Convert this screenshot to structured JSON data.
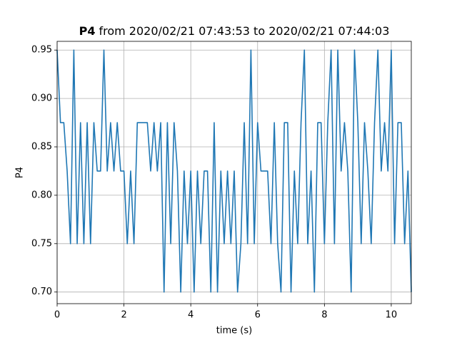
{
  "chart_data": {
    "type": "line",
    "title": [
      "P4",
      "from 2020/02/21 07:43:53 to 2020/02/21 07:44:03"
    ],
    "xlabel": "time (s)",
    "ylabel": "P4",
    "x": [
      0,
      0.1,
      0.2,
      0.3,
      0.4,
      0.5,
      0.6,
      0.7,
      0.8,
      0.9,
      1.0,
      1.1,
      1.2,
      1.3,
      1.4,
      1.5,
      1.6,
      1.7,
      1.8,
      1.9,
      2.0,
      2.1,
      2.2,
      2.3,
      2.4,
      2.5,
      2.6,
      2.7,
      2.8,
      2.9,
      3.0,
      3.1,
      3.2,
      3.3,
      3.4,
      3.5,
      3.6,
      3.7,
      3.8,
      3.9,
      4.0,
      4.1,
      4.2,
      4.3,
      4.4,
      4.5,
      4.6,
      4.7,
      4.8,
      4.9,
      5.0,
      5.1,
      5.2,
      5.3,
      5.4,
      5.5,
      5.6,
      5.7,
      5.8,
      5.9,
      6.0,
      6.1,
      6.2,
      6.3,
      6.4,
      6.5,
      6.6,
      6.7,
      6.8,
      6.9,
      7.0,
      7.1,
      7.2,
      7.3,
      7.4,
      7.5,
      7.6,
      7.7,
      7.8,
      7.9,
      8.0,
      8.1,
      8.2,
      8.3,
      8.4,
      8.5,
      8.6,
      8.7,
      8.8,
      8.9,
      9.0,
      9.1,
      9.2,
      9.3,
      9.4,
      9.5,
      9.6,
      9.7,
      9.8,
      9.9,
      10.0,
      10.1,
      10.2,
      10.3,
      10.4,
      10.5,
      10.6
    ],
    "values": [
      0.95,
      0.875,
      0.875,
      0.825,
      0.75,
      0.95,
      0.75,
      0.875,
      0.75,
      0.875,
      0.75,
      0.875,
      0.825,
      0.825,
      0.95,
      0.825,
      0.875,
      0.825,
      0.875,
      0.825,
      0.825,
      0.75,
      0.825,
      0.75,
      0.875,
      0.875,
      0.875,
      0.875,
      0.825,
      0.875,
      0.825,
      0.875,
      0.7,
      0.875,
      0.75,
      0.875,
      0.825,
      0.7,
      0.825,
      0.75,
      0.825,
      0.7,
      0.825,
      0.75,
      0.825,
      0.825,
      0.7,
      0.875,
      0.7,
      0.825,
      0.75,
      0.825,
      0.75,
      0.825,
      0.7,
      0.75,
      0.875,
      0.75,
      0.95,
      0.75,
      0.875,
      0.825,
      0.825,
      0.825,
      0.75,
      0.875,
      0.75,
      0.7,
      0.875,
      0.875,
      0.7,
      0.825,
      0.75,
      0.875,
      0.95,
      0.75,
      0.825,
      0.7,
      0.875,
      0.875,
      0.75,
      0.875,
      0.95,
      0.75,
      0.95,
      0.825,
      0.875,
      0.825,
      0.7,
      0.95,
      0.875,
      0.75,
      0.875,
      0.825,
      0.75,
      0.875,
      0.95,
      0.825,
      0.875,
      0.825,
      0.95,
      0.75,
      0.875,
      0.875,
      0.75,
      0.825,
      0.7
    ],
    "color": "#1f77b4",
    "xlim": [
      0,
      10.6
    ],
    "ylim": [
      0.688,
      0.959
    ],
    "xticks": [
      0,
      2,
      4,
      6,
      8,
      10
    ],
    "yticks": [
      {
        "value": 0.7,
        "label": "0.70"
      },
      0.75,
      {
        "value": 0.8,
        "label": "0.80"
      },
      0.85,
      {
        "value": 0.9,
        "label": "0.90"
      },
      0.95
    ],
    "grid": true
  }
}
